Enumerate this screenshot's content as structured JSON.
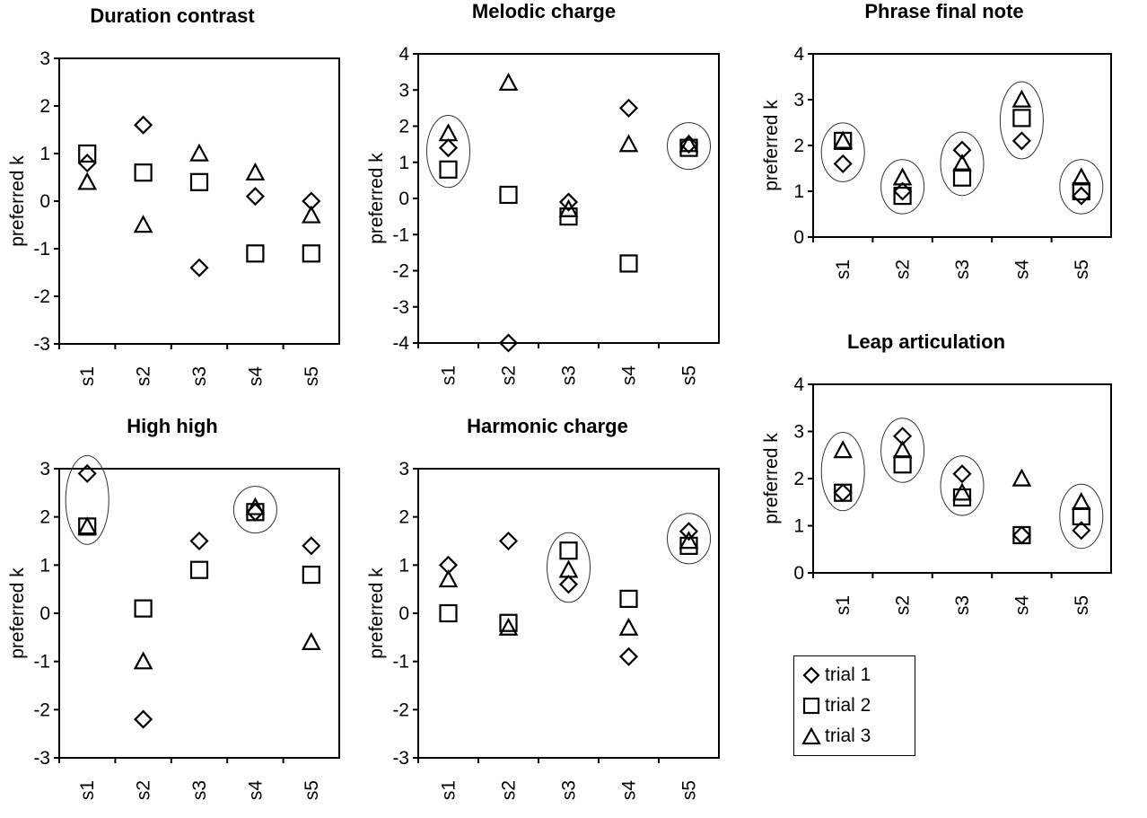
{
  "chart_data": [
    {
      "type": "scatter",
      "title": "Duration contrast",
      "xlabel": "",
      "ylabel": "preferred k",
      "categories": [
        "s1",
        "s2",
        "s3",
        "s4",
        "s5"
      ],
      "ylim": [
        -3,
        3
      ],
      "yticks": [
        "3",
        "2",
        "1",
        "0",
        "-1",
        "-2",
        "-3"
      ],
      "series": [
        {
          "name": "trial 1",
          "values": [
            0.8,
            1.6,
            -1.4,
            0.1,
            0.0
          ]
        },
        {
          "name": "trial 2",
          "values": [
            1.0,
            0.6,
            0.4,
            -1.1,
            -1.1
          ]
        },
        {
          "name": "trial 3",
          "values": [
            0.4,
            -0.5,
            1.0,
            0.6,
            -0.3
          ]
        }
      ],
      "circled": []
    },
    {
      "type": "scatter",
      "title": "Melodic charge",
      "xlabel": "",
      "ylabel": "preferred k",
      "categories": [
        "s1",
        "s2",
        "s3",
        "s4",
        "s5"
      ],
      "ylim": [
        -4,
        4
      ],
      "yticks": [
        "4",
        "3",
        "2",
        "1",
        "0",
        "-1",
        "-2",
        "-3",
        "-4"
      ],
      "series": [
        {
          "name": "trial 1",
          "values": [
            1.4,
            -4.0,
            -0.1,
            2.5,
            1.5
          ]
        },
        {
          "name": "trial 2",
          "values": [
            0.8,
            0.1,
            -0.5,
            -1.8,
            1.4
          ]
        },
        {
          "name": "trial 3",
          "values": [
            1.8,
            3.2,
            -0.3,
            1.5,
            1.5
          ]
        }
      ],
      "circled": [
        "s1",
        "s5"
      ]
    },
    {
      "type": "scatter",
      "title": "Phrase final note",
      "xlabel": "",
      "ylabel": "preferred k",
      "categories": [
        "s1",
        "s2",
        "s3",
        "s4",
        "s5"
      ],
      "ylim": [
        0,
        4
      ],
      "yticks": [
        "4",
        "3",
        "2",
        "1",
        "0"
      ],
      "series": [
        {
          "name": "trial 1",
          "values": [
            1.6,
            1.0,
            1.9,
            2.1,
            0.9
          ]
        },
        {
          "name": "trial 2",
          "values": [
            2.1,
            0.9,
            1.3,
            2.6,
            1.0
          ]
        },
        {
          "name": "trial 3",
          "values": [
            2.1,
            1.3,
            1.6,
            3.0,
            1.3
          ]
        }
      ],
      "circled": [
        "s1",
        "s2",
        "s3",
        "s4",
        "s5"
      ]
    },
    {
      "type": "scatter",
      "title": "High high",
      "xlabel": "",
      "ylabel": "preferred k",
      "categories": [
        "s1",
        "s2",
        "s3",
        "s4",
        "s5"
      ],
      "ylim": [
        -3,
        3
      ],
      "yticks": [
        "3",
        "2",
        "1",
        "0",
        "-1",
        "-2",
        "-3"
      ],
      "series": [
        {
          "name": "trial 1",
          "values": [
            2.9,
            -2.2,
            1.5,
            2.1,
            1.4
          ]
        },
        {
          "name": "trial 2",
          "values": [
            1.8,
            0.1,
            0.9,
            2.1,
            0.8
          ]
        },
        {
          "name": "trial 3",
          "values": [
            1.8,
            -1.0,
            null,
            2.2,
            -0.6
          ]
        }
      ],
      "circled": [
        "s1",
        "s4"
      ]
    },
    {
      "type": "scatter",
      "title": "Harmonic charge",
      "xlabel": "",
      "ylabel": "preferred k",
      "categories": [
        "s1",
        "s2",
        "s3",
        "s4",
        "s5"
      ],
      "ylim": [
        -3,
        3
      ],
      "yticks": [
        "3",
        "2",
        "1",
        "0",
        "-1",
        "-2",
        "-3"
      ],
      "series": [
        {
          "name": "trial 1",
          "values": [
            1.0,
            1.5,
            0.6,
            -0.9,
            1.7
          ]
        },
        {
          "name": "trial 2",
          "values": [
            0.0,
            -0.2,
            1.3,
            0.3,
            1.4
          ]
        },
        {
          "name": "trial 3",
          "values": [
            0.7,
            -0.3,
            0.9,
            -0.3,
            1.5
          ]
        }
      ],
      "circled": [
        "s3",
        "s5"
      ]
    },
    {
      "type": "scatter",
      "title": "Leap articulation",
      "xlabel": "",
      "ylabel": "preferred k",
      "categories": [
        "s1",
        "s2",
        "s3",
        "s4",
        "s5"
      ],
      "ylim": [
        0,
        4
      ],
      "yticks": [
        "4",
        "3",
        "2",
        "1",
        "0"
      ],
      "series": [
        {
          "name": "trial 1",
          "values": [
            1.7,
            2.9,
            2.1,
            0.8,
            0.9
          ]
        },
        {
          "name": "trial 2",
          "values": [
            1.7,
            2.3,
            1.6,
            0.8,
            1.2
          ]
        },
        {
          "name": "trial 3",
          "values": [
            2.6,
            2.6,
            1.7,
            2.0,
            1.5
          ]
        }
      ],
      "circled": [
        "s1",
        "s2",
        "s3",
        "s5"
      ]
    }
  ],
  "legend": {
    "items": [
      {
        "label": "trial 1",
        "marker": "diamond"
      },
      {
        "label": "trial 2",
        "marker": "square"
      },
      {
        "label": "trial 3",
        "marker": "triangle"
      }
    ]
  }
}
